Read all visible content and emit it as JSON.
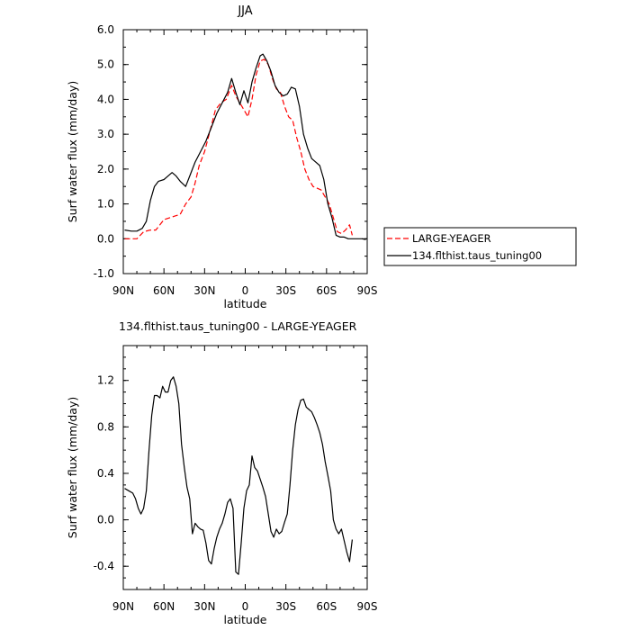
{
  "chart_data": [
    {
      "type": "line",
      "title": "JJA",
      "xlabel": "latitude",
      "ylabel": "Surf water flux (mm/day)",
      "xlim": [
        90,
        -90
      ],
      "ylim": [
        -1.0,
        6.0
      ],
      "x_ticks": [
        90,
        60,
        30,
        0,
        -30,
        -60,
        -90
      ],
      "x_tick_labels": [
        "90N",
        "60N",
        "30N",
        "0",
        "30S",
        "60S",
        "90S"
      ],
      "y_ticks": [
        -1.0,
        0.0,
        1.0,
        2.0,
        3.0,
        4.0,
        5.0,
        6.0
      ],
      "y_tick_labels": [
        "-1.0",
        "0.0",
        "1.0",
        "2.0",
        "3.0",
        "4.0",
        "5.0",
        "6.0"
      ],
      "legend_position": "right",
      "series": [
        {
          "name": "LARGE-YEAGER",
          "color": "#ff0000",
          "dash": "dashed",
          "points": [
            [
              89,
              0.0
            ],
            [
              84,
              0.0
            ],
            [
              80,
              0.0
            ],
            [
              75,
              0.2
            ],
            [
              70,
              0.25
            ],
            [
              66,
              0.25
            ],
            [
              63,
              0.4
            ],
            [
              60,
              0.55
            ],
            [
              56,
              0.6
            ],
            [
              52,
              0.65
            ],
            [
              48,
              0.7
            ],
            [
              44,
              1.0
            ],
            [
              40,
              1.2
            ],
            [
              37,
              1.6
            ],
            [
              34,
              2.1
            ],
            [
              30,
              2.5
            ],
            [
              26,
              3.1
            ],
            [
              22,
              3.7
            ],
            [
              18,
              3.9
            ],
            [
              14,
              4.0
            ],
            [
              10,
              4.4
            ],
            [
              7,
              4.1
            ],
            [
              4,
              3.9
            ],
            [
              1,
              3.7
            ],
            [
              -2,
              3.5
            ],
            [
              -5,
              4.0
            ],
            [
              -8,
              4.7
            ],
            [
              -11,
              5.1
            ],
            [
              -14,
              5.15
            ],
            [
              -17,
              5.0
            ],
            [
              -20,
              4.6
            ],
            [
              -23,
              4.3
            ],
            [
              -26,
              4.2
            ],
            [
              -29,
              3.8
            ],
            [
              -32,
              3.5
            ],
            [
              -35,
              3.4
            ],
            [
              -38,
              2.9
            ],
            [
              -41,
              2.5
            ],
            [
              -44,
              2.0
            ],
            [
              -47,
              1.7
            ],
            [
              -50,
              1.5
            ],
            [
              -53,
              1.45
            ],
            [
              -56,
              1.4
            ],
            [
              -59,
              1.2
            ],
            [
              -62,
              1.0
            ],
            [
              -65,
              0.6
            ],
            [
              -68,
              0.2
            ],
            [
              -71,
              0.15
            ],
            [
              -74,
              0.25
            ],
            [
              -77,
              0.4
            ],
            [
              -79,
              0.1
            ]
          ]
        },
        {
          "name": "134.flthist.taus_tuning00",
          "color": "#000000",
          "dash": "solid",
          "points": [
            [
              89,
              0.25
            ],
            [
              84,
              0.22
            ],
            [
              80,
              0.22
            ],
            [
              76,
              0.3
            ],
            [
              73,
              0.5
            ],
            [
              70,
              1.1
            ],
            [
              67,
              1.5
            ],
            [
              64,
              1.65
            ],
            [
              60,
              1.7
            ],
            [
              57,
              1.8
            ],
            [
              54,
              1.9
            ],
            [
              51,
              1.8
            ],
            [
              48,
              1.65
            ],
            [
              44,
              1.5
            ],
            [
              41,
              1.8
            ],
            [
              37,
              2.2
            ],
            [
              33,
              2.5
            ],
            [
              29,
              2.8
            ],
            [
              25,
              3.2
            ],
            [
              21,
              3.6
            ],
            [
              17,
              3.9
            ],
            [
              13,
              4.2
            ],
            [
              10,
              4.6
            ],
            [
              7,
              4.2
            ],
            [
              4,
              3.85
            ],
            [
              1,
              4.25
            ],
            [
              -2,
              3.9
            ],
            [
              -5,
              4.5
            ],
            [
              -8,
              4.9
            ],
            [
              -11,
              5.25
            ],
            [
              -13,
              5.3
            ],
            [
              -16,
              5.1
            ],
            [
              -19,
              4.8
            ],
            [
              -22,
              4.4
            ],
            [
              -25,
              4.2
            ],
            [
              -28,
              4.1
            ],
            [
              -31,
              4.15
            ],
            [
              -34,
              4.35
            ],
            [
              -37,
              4.3
            ],
            [
              -40,
              3.8
            ],
            [
              -43,
              3.0
            ],
            [
              -46,
              2.6
            ],
            [
              -49,
              2.3
            ],
            [
              -52,
              2.2
            ],
            [
              -55,
              2.1
            ],
            [
              -58,
              1.7
            ],
            [
              -61,
              1.0
            ],
            [
              -64,
              0.6
            ],
            [
              -67,
              0.1
            ],
            [
              -70,
              0.05
            ],
            [
              -73,
              0.05
            ],
            [
              -76,
              0.0
            ],
            [
              -79,
              0.0
            ],
            [
              -83,
              0.0
            ],
            [
              -86,
              0.0
            ],
            [
              -89,
              -0.02
            ]
          ]
        }
      ]
    },
    {
      "type": "line",
      "title": "134.flthist.taus_tuning00 - LARGE-YEAGER",
      "xlabel": "latitude",
      "ylabel": "Surf water flux (mm/day)",
      "xlim": [
        90,
        -90
      ],
      "ylim": [
        -0.6,
        1.5
      ],
      "x_ticks": [
        90,
        60,
        30,
        0,
        -30,
        -60,
        -90
      ],
      "x_tick_labels": [
        "90N",
        "60N",
        "30N",
        "0",
        "30S",
        "60S",
        "90S"
      ],
      "y_ticks": [
        -0.4,
        0.0,
        0.4,
        0.8,
        1.2
      ],
      "y_tick_labels": [
        "-0.4",
        "0.0",
        "0.4",
        "0.8",
        "1.2"
      ],
      "series": [
        {
          "color": "#000000",
          "dash": "solid",
          "points": [
            [
              89,
              0.27
            ],
            [
              86,
              0.25
            ],
            [
              83,
              0.23
            ],
            [
              81,
              0.18
            ],
            [
              79,
              0.1
            ],
            [
              77,
              0.05
            ],
            [
              75,
              0.1
            ],
            [
              73,
              0.25
            ],
            [
              71,
              0.6
            ],
            [
              69,
              0.9
            ],
            [
              67,
              1.07
            ],
            [
              65,
              1.07
            ],
            [
              63,
              1.05
            ],
            [
              61,
              1.15
            ],
            [
              59,
              1.1
            ],
            [
              57,
              1.1
            ],
            [
              55,
              1.2
            ],
            [
              53,
              1.23
            ],
            [
              51,
              1.15
            ],
            [
              49,
              1.0
            ],
            [
              47,
              0.65
            ],
            [
              45,
              0.45
            ],
            [
              43,
              0.28
            ],
            [
              41,
              0.18
            ],
            [
              39,
              -0.12
            ],
            [
              37,
              -0.03
            ],
            [
              35,
              -0.06
            ],
            [
              33,
              -0.08
            ],
            [
              31,
              -0.09
            ],
            [
              29,
              -0.2
            ],
            [
              27,
              -0.35
            ],
            [
              25,
              -0.38
            ],
            [
              23,
              -0.25
            ],
            [
              21,
              -0.15
            ],
            [
              19,
              -0.08
            ],
            [
              17,
              -0.03
            ],
            [
              15,
              0.05
            ],
            [
              13,
              0.15
            ],
            [
              11,
              0.18
            ],
            [
              9,
              0.1
            ],
            [
              7,
              -0.45
            ],
            [
              5,
              -0.47
            ],
            [
              3,
              -0.2
            ],
            [
              1,
              0.1
            ],
            [
              -1,
              0.25
            ],
            [
              -3,
              0.3
            ],
            [
              -5,
              0.55
            ],
            [
              -7,
              0.45
            ],
            [
              -9,
              0.42
            ],
            [
              -11,
              0.35
            ],
            [
              -13,
              0.28
            ],
            [
              -15,
              0.2
            ],
            [
              -17,
              0.05
            ],
            [
              -19,
              -0.1
            ],
            [
              -21,
              -0.15
            ],
            [
              -23,
              -0.08
            ],
            [
              -25,
              -0.12
            ],
            [
              -27,
              -0.1
            ],
            [
              -29,
              -0.02
            ],
            [
              -31,
              0.05
            ],
            [
              -33,
              0.3
            ],
            [
              -35,
              0.6
            ],
            [
              -37,
              0.82
            ],
            [
              -39,
              0.95
            ],
            [
              -41,
              1.03
            ],
            [
              -43,
              1.04
            ],
            [
              -45,
              0.97
            ],
            [
              -47,
              0.95
            ],
            [
              -49,
              0.93
            ],
            [
              -51,
              0.88
            ],
            [
              -53,
              0.82
            ],
            [
              -55,
              0.75
            ],
            [
              -57,
              0.65
            ],
            [
              -59,
              0.5
            ],
            [
              -61,
              0.38
            ],
            [
              -63,
              0.25
            ],
            [
              -65,
              0.0
            ],
            [
              -67,
              -0.08
            ],
            [
              -69,
              -0.12
            ],
            [
              -71,
              -0.08
            ],
            [
              -73,
              -0.18
            ],
            [
              -75,
              -0.28
            ],
            [
              -77,
              -0.36
            ],
            [
              -79,
              -0.17
            ]
          ]
        }
      ]
    }
  ]
}
